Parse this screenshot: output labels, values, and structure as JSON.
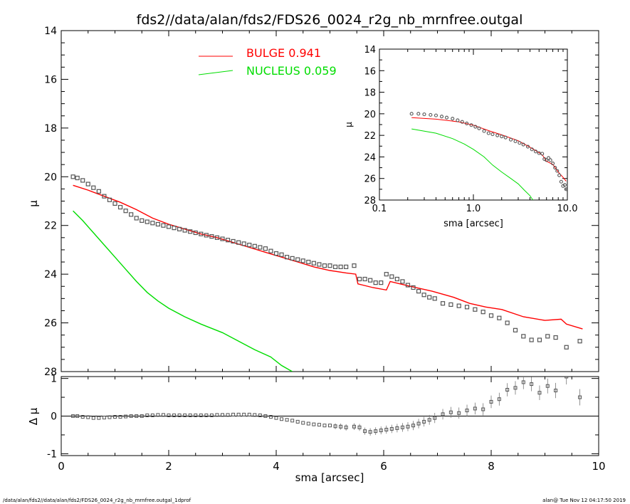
{
  "title": "fds2//data/alan/fds2/FDS26_0024_r2g_nb_mrnfree.outgal",
  "footer_left": "/data/alan/fds2//data/alan/fds2/FDS26_0024_r2g_nb_mrnfree.outgal_1dprof",
  "footer_right": "alan@  Tue Nov 12 04:17:50 2019",
  "colors": {
    "bulge": "#ff0000",
    "nucleus": "#00dd00",
    "data": "#555555",
    "axis": "#000000"
  },
  "chart_data": [
    {
      "type": "line",
      "panel": "main",
      "xlabel": "sma [arcsec]",
      "ylabel": "μ",
      "xlim": [
        0,
        10
      ],
      "ylim": [
        28,
        14
      ],
      "y_inverted": true,
      "x_tick_labels": [
        "0",
        "2",
        "4",
        "6",
        "8",
        "10"
      ],
      "y_tick_labels": [
        "14",
        "16",
        "18",
        "20",
        "22",
        "24",
        "26",
        "28"
      ],
      "legend_position": "top-center",
      "legend": [
        {
          "label": "BULGE  0.941",
          "color": "#ff0000"
        },
        {
          "label": "NUCLEUS  0.059",
          "color": "#00dd00"
        }
      ],
      "series": [
        {
          "name": "BULGE",
          "kind": "line",
          "x": [
            0.22,
            0.5,
            0.8,
            1.1,
            1.4,
            1.7,
            2.0,
            2.3,
            2.6,
            2.9,
            3.2,
            3.5,
            3.8,
            4.1,
            4.4,
            4.7,
            5.0,
            5.3,
            5.48,
            5.52,
            5.8,
            6.05,
            6.12,
            6.5,
            6.9,
            7.3,
            7.6,
            7.9,
            8.2,
            8.6,
            9.0,
            9.3,
            9.4,
            9.7
          ],
          "y": [
            20.35,
            20.55,
            20.8,
            21.05,
            21.35,
            21.7,
            21.95,
            22.15,
            22.35,
            22.5,
            22.7,
            22.9,
            23.1,
            23.3,
            23.5,
            23.7,
            23.85,
            23.95,
            24.0,
            24.4,
            24.55,
            24.65,
            24.3,
            24.5,
            24.7,
            24.95,
            25.2,
            25.35,
            25.45,
            25.75,
            25.9,
            25.85,
            26.05,
            26.25
          ]
        },
        {
          "name": "NUCLEUS",
          "kind": "line",
          "x": [
            0.22,
            0.4,
            0.6,
            0.8,
            1.0,
            1.2,
            1.4,
            1.6,
            1.8,
            2.0,
            2.3,
            2.6,
            3.0,
            3.3,
            3.6,
            3.9,
            4.1,
            4.3
          ],
          "y": [
            21.4,
            21.8,
            22.3,
            22.8,
            23.3,
            23.8,
            24.3,
            24.75,
            25.1,
            25.4,
            25.75,
            26.05,
            26.4,
            26.75,
            27.1,
            27.4,
            27.75,
            28.0
          ]
        },
        {
          "name": "data",
          "kind": "markers",
          "x": [
            0.22,
            0.3,
            0.4,
            0.5,
            0.6,
            0.7,
            0.8,
            0.9,
            1.0,
            1.1,
            1.2,
            1.3,
            1.4,
            1.5,
            1.6,
            1.7,
            1.8,
            1.9,
            2.0,
            2.1,
            2.2,
            2.3,
            2.4,
            2.5,
            2.6,
            2.7,
            2.8,
            2.9,
            3.0,
            3.1,
            3.2,
            3.3,
            3.4,
            3.5,
            3.6,
            3.7,
            3.8,
            3.9,
            4.0,
            4.1,
            4.2,
            4.3,
            4.4,
            4.5,
            4.6,
            4.7,
            4.8,
            4.9,
            5.0,
            5.1,
            5.2,
            5.3,
            5.45,
            5.55,
            5.65,
            5.75,
            5.85,
            5.95,
            6.05,
            6.15,
            6.25,
            6.35,
            6.45,
            6.55,
            6.65,
            6.75,
            6.85,
            6.95,
            7.1,
            7.25,
            7.4,
            7.55,
            7.7,
            7.85,
            8.0,
            8.15,
            8.3,
            8.45,
            8.6,
            8.75,
            8.9,
            9.05,
            9.2,
            9.4,
            9.65
          ],
          "y": [
            20.0,
            20.05,
            20.15,
            20.3,
            20.45,
            20.6,
            20.8,
            20.95,
            21.1,
            21.25,
            21.4,
            21.55,
            21.7,
            21.8,
            21.85,
            21.9,
            21.95,
            22.0,
            22.05,
            22.1,
            22.15,
            22.2,
            22.25,
            22.3,
            22.35,
            22.4,
            22.45,
            22.5,
            22.55,
            22.6,
            22.65,
            22.7,
            22.75,
            22.8,
            22.85,
            22.9,
            22.95,
            23.05,
            23.15,
            23.2,
            23.3,
            23.35,
            23.4,
            23.45,
            23.5,
            23.55,
            23.6,
            23.65,
            23.65,
            23.7,
            23.7,
            23.7,
            23.65,
            24.2,
            24.2,
            24.25,
            24.35,
            24.35,
            24.0,
            24.1,
            24.2,
            24.3,
            24.45,
            24.55,
            24.7,
            24.85,
            24.95,
            25.0,
            25.2,
            25.25,
            25.3,
            25.35,
            25.45,
            25.55,
            25.7,
            25.8,
            26.0,
            26.3,
            26.55,
            26.7,
            26.7,
            26.55,
            26.6,
            27.0,
            26.75
          ]
        }
      ]
    },
    {
      "type": "line",
      "panel": "inset",
      "xlabel": "sma [arcsec]",
      "ylabel": "μ",
      "x_scale": "log",
      "xlim": [
        0.1,
        10.0
      ],
      "ylim": [
        28,
        14
      ],
      "y_inverted": true,
      "x_tick_labels": [
        "0.1",
        "1.0",
        "10.0"
      ],
      "y_tick_labels": [
        "14",
        "16",
        "18",
        "20",
        "22",
        "24",
        "26",
        "28"
      ],
      "series": [
        {
          "name": "BULGE",
          "kind": "line",
          "x": [
            0.22,
            0.4,
            0.7,
            1.0,
            1.5,
            2.0,
            3.0,
            4.0,
            5.0,
            5.5,
            6.0,
            7.0,
            8.0,
            9.0,
            9.7
          ],
          "y": [
            20.35,
            20.5,
            20.75,
            21.05,
            21.6,
            21.95,
            22.5,
            23.1,
            23.6,
            23.9,
            24.4,
            24.7,
            25.4,
            25.9,
            26.25
          ]
        },
        {
          "name": "NUCLEUS",
          "kind": "line",
          "x": [
            0.22,
            0.4,
            0.6,
            0.8,
            1.0,
            1.3,
            1.6,
            2.0,
            2.5,
            3.0,
            3.5,
            4.0,
            4.3
          ],
          "y": [
            21.4,
            21.8,
            22.3,
            22.8,
            23.3,
            24.0,
            24.75,
            25.4,
            26.0,
            26.5,
            27.1,
            27.6,
            28.0
          ]
        },
        {
          "name": "data",
          "kind": "markers",
          "x": [
            0.22,
            0.26,
            0.3,
            0.35,
            0.4,
            0.46,
            0.52,
            0.6,
            0.68,
            0.76,
            0.85,
            0.95,
            1.05,
            1.15,
            1.3,
            1.45,
            1.6,
            1.8,
            2.0,
            2.2,
            2.5,
            2.8,
            3.1,
            3.4,
            3.8,
            4.2,
            4.6,
            5.0,
            5.4,
            5.7,
            6.0,
            6.3,
            6.6,
            7.0,
            7.4,
            7.8,
            8.2,
            8.6,
            9.0,
            9.4,
            9.7
          ],
          "y": [
            20.0,
            20.0,
            20.05,
            20.1,
            20.15,
            20.25,
            20.35,
            20.45,
            20.6,
            20.75,
            20.9,
            21.05,
            21.2,
            21.35,
            21.6,
            21.8,
            21.9,
            22.0,
            22.1,
            22.2,
            22.4,
            22.55,
            22.7,
            22.85,
            23.05,
            23.3,
            23.5,
            23.65,
            23.7,
            24.2,
            24.3,
            24.1,
            24.3,
            24.6,
            25.0,
            25.3,
            25.7,
            26.3,
            26.7,
            26.6,
            27.0
          ]
        }
      ]
    },
    {
      "type": "scatter",
      "panel": "residual",
      "xlabel": "sma [arcsec]",
      "ylabel": "Δ μ",
      "xlim": [
        0,
        10
      ],
      "ylim": [
        -1,
        1
      ],
      "x_tick_labels": [
        "0",
        "2",
        "4",
        "6",
        "8",
        "10"
      ],
      "y_tick_labels": [
        "-1",
        "0",
        "1"
      ],
      "zero_line": true,
      "series": [
        {
          "name": "residual",
          "x": [
            0.22,
            0.3,
            0.4,
            0.5,
            0.6,
            0.7,
            0.8,
            0.9,
            1.0,
            1.1,
            1.2,
            1.3,
            1.4,
            1.5,
            1.6,
            1.7,
            1.8,
            1.9,
            2.0,
            2.1,
            2.2,
            2.3,
            2.4,
            2.5,
            2.6,
            2.7,
            2.8,
            2.9,
            3.0,
            3.1,
            3.2,
            3.3,
            3.4,
            3.5,
            3.6,
            3.7,
            3.8,
            3.9,
            4.0,
            4.1,
            4.2,
            4.3,
            4.4,
            4.5,
            4.6,
            4.7,
            4.8,
            4.9,
            5.0,
            5.1,
            5.2,
            5.3,
            5.45,
            5.55,
            5.65,
            5.75,
            5.85,
            5.95,
            6.05,
            6.15,
            6.25,
            6.35,
            6.45,
            6.55,
            6.65,
            6.75,
            6.85,
            6.95,
            7.1,
            7.25,
            7.4,
            7.55,
            7.7,
            7.85,
            8.0,
            8.15,
            8.3,
            8.45,
            8.6,
            8.75,
            8.9,
            9.05,
            9.2,
            9.4,
            9.65
          ],
          "y": [
            0.0,
            0.0,
            -0.02,
            -0.03,
            -0.05,
            -0.05,
            -0.04,
            -0.03,
            -0.02,
            -0.02,
            -0.01,
            0.0,
            0.0,
            0.0,
            0.02,
            0.02,
            0.03,
            0.03,
            0.02,
            0.02,
            0.02,
            0.02,
            0.02,
            0.02,
            0.02,
            0.02,
            0.02,
            0.03,
            0.03,
            0.03,
            0.04,
            0.04,
            0.04,
            0.04,
            0.03,
            0.02,
            0.0,
            -0.02,
            -0.05,
            -0.08,
            -0.1,
            -0.12,
            -0.15,
            -0.18,
            -0.2,
            -0.22,
            -0.23,
            -0.25,
            -0.25,
            -0.27,
            -0.28,
            -0.3,
            -0.28,
            -0.3,
            -0.4,
            -0.42,
            -0.4,
            -0.38,
            -0.36,
            -0.34,
            -0.32,
            -0.3,
            -0.28,
            -0.25,
            -0.2,
            -0.15,
            -0.1,
            -0.05,
            0.05,
            0.1,
            0.08,
            0.15,
            0.2,
            0.18,
            0.38,
            0.45,
            0.7,
            0.75,
            0.9,
            0.85,
            0.62,
            0.8,
            0.68,
            1.05,
            0.5
          ]
        }
      ]
    }
  ]
}
